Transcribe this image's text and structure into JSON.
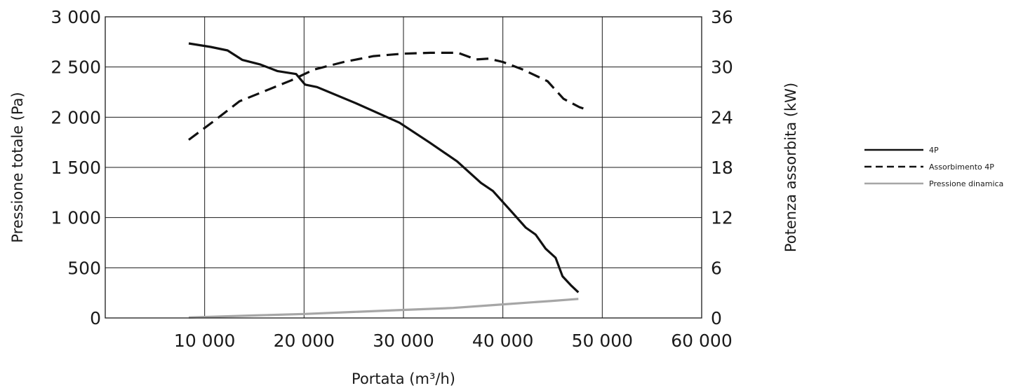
{
  "chart_data": {
    "type": "line",
    "xlabel": "Portata (m³/h)",
    "ylabel_left": "Pressione totale (Pa)",
    "ylabel_right": "Potenza assorbita (kW)",
    "xlim": [
      0,
      60000
    ],
    "ylim_left": [
      0,
      3000
    ],
    "ylim_right": [
      0,
      36
    ],
    "x_ticks": [
      10000,
      20000,
      30000,
      40000,
      50000,
      60000
    ],
    "x_tick_labels": [
      "10 000",
      "20 000",
      "30 000",
      "40 000",
      "50 000",
      "60 000"
    ],
    "y_left_ticks": [
      0,
      500,
      1000,
      1500,
      2000,
      2500,
      3000
    ],
    "y_left_tick_labels": [
      "0",
      "500",
      "1 000",
      "1 500",
      "2 000",
      "2 500",
      "3 000"
    ],
    "y_right_ticks": [
      0,
      6,
      12,
      18,
      24,
      30,
      36
    ],
    "y_right_tick_labels": [
      "0",
      "6",
      "12",
      "18",
      "24",
      "30",
      "36"
    ],
    "grid": true,
    "legend_position": "right",
    "series": [
      {
        "name": "4P",
        "axis": "left",
        "style": "solid",
        "color": "#111111",
        "points": [
          [
            8400,
            2735
          ],
          [
            10600,
            2700
          ],
          [
            12300,
            2665
          ],
          [
            13800,
            2570
          ],
          [
            15600,
            2525
          ],
          [
            17300,
            2460
          ],
          [
            19200,
            2430
          ],
          [
            20100,
            2325
          ],
          [
            21300,
            2300
          ],
          [
            25200,
            2140
          ],
          [
            29600,
            1945
          ],
          [
            32600,
            1750
          ],
          [
            35400,
            1560
          ],
          [
            37800,
            1345
          ],
          [
            39000,
            1265
          ],
          [
            41000,
            1045
          ],
          [
            42300,
            900
          ],
          [
            43300,
            830
          ],
          [
            44300,
            690
          ],
          [
            45300,
            600
          ],
          [
            46000,
            415
          ],
          [
            46900,
            320
          ],
          [
            47600,
            255
          ]
        ]
      },
      {
        "name": "Assorbimento 4P",
        "axis": "right",
        "style": "dashed",
        "color": "#111111",
        "points": [
          [
            8400,
            21.3
          ],
          [
            11000,
            23.6
          ],
          [
            13500,
            25.9
          ],
          [
            16000,
            27.1
          ],
          [
            18700,
            28.4
          ],
          [
            21000,
            29.7
          ],
          [
            24000,
            30.6
          ],
          [
            27000,
            31.3
          ],
          [
            30000,
            31.6
          ],
          [
            32700,
            31.7
          ],
          [
            35500,
            31.7
          ],
          [
            37300,
            30.9
          ],
          [
            38600,
            31.0
          ],
          [
            40000,
            30.6
          ],
          [
            42000,
            29.7
          ],
          [
            44500,
            28.3
          ],
          [
            46100,
            26.2
          ],
          [
            47700,
            25.2
          ],
          [
            48700,
            24.8
          ]
        ]
      },
      {
        "name": "Pressione dinamica",
        "axis": "left",
        "style": "solid",
        "color": "#a6a6a6",
        "points": [
          [
            8400,
            5
          ],
          [
            15000,
            25
          ],
          [
            20000,
            40
          ],
          [
            25000,
            60
          ],
          [
            30000,
            80
          ],
          [
            35000,
            100
          ],
          [
            40000,
            135
          ],
          [
            45000,
            170
          ],
          [
            47600,
            190
          ]
        ]
      }
    ]
  }
}
